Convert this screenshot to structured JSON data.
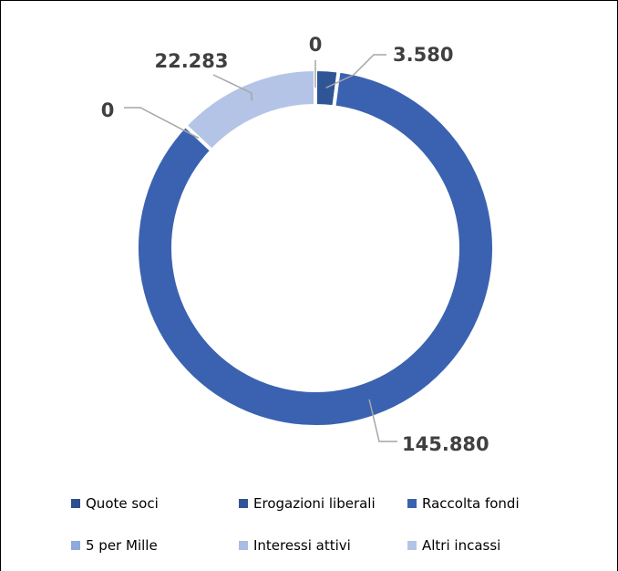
{
  "chart_data": {
    "type": "pie",
    "subtype": "doughnut",
    "title": "",
    "categories": [
      "Quote soci",
      "Erogazioni liberali",
      "Raccolta fondi",
      "5 per Mille",
      "Interessi attivi",
      "Altri incassi"
    ],
    "values": [
      0,
      3580,
      145880,
      0,
      0,
      22283
    ],
    "data_labels": [
      "0",
      "3.580",
      "145.880",
      "0",
      "",
      "22.283"
    ],
    "colors": [
      "#2e4f8f",
      "#2f5597",
      "#3a62b0",
      "#8ea9db",
      "#a9bce2",
      "#b4c4e6"
    ],
    "legend_position": "bottom"
  }
}
